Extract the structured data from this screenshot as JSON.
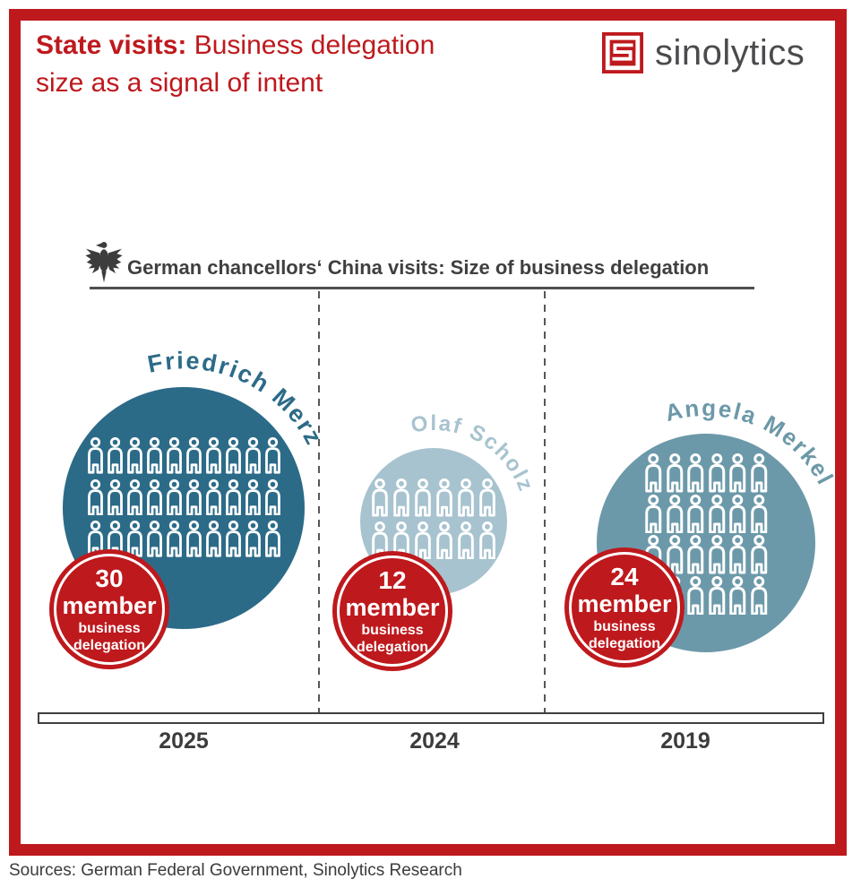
{
  "header": {
    "title_bold": "State visits:",
    "title_rest": " Business delegation",
    "title_line2": "size as a signal of intent",
    "brand": "sinolytics",
    "logo_icon": "sinolytics-logo-icon"
  },
  "chart": {
    "eagle_icon": "german-federal-eagle-icon",
    "title": "German chancellors‘ China visits: Size of business delegation",
    "groups": [
      {
        "name": "Friedrich Merz",
        "year": "2025",
        "members": 30,
        "grid_rows": 3,
        "grid_cols": 10,
        "color": "#2c6b88",
        "badge": {
          "number": "30",
          "unit": "member",
          "line1": "business",
          "line2": "delegation"
        }
      },
      {
        "name": "Olaf Scholz",
        "year": "2024",
        "members": 12,
        "grid_rows": 2,
        "grid_cols": 6,
        "color": "#a7c3cf",
        "badge": {
          "number": "12",
          "unit": "member",
          "line1": "business",
          "line2": "delegation"
        }
      },
      {
        "name": "Angela Merkel",
        "year": "2019",
        "members": 24,
        "grid_rows": 4,
        "grid_cols": 6,
        "color": "#6c99a9",
        "badge": {
          "number": "24",
          "unit": "member",
          "line1": "business",
          "line2": "delegation"
        }
      }
    ],
    "timeline": {
      "years": [
        "2025",
        "2024",
        "2019"
      ]
    }
  },
  "footer": {
    "sources": "Sources: German Federal Government, Sinolytics Research"
  },
  "colors": {
    "accent_red": "#be191d",
    "merz_blue": "#2c6b88",
    "scholz_blue": "#a7c3cf",
    "merkel_blue": "#6c99a9",
    "text_dark": "#3d3d3d",
    "brand_gray": "#4b4b4e"
  },
  "chart_data": {
    "type": "pictogram",
    "title": "German chancellors‘ China visits: Size of business delegation",
    "categories": [
      "2025",
      "2024",
      "2019"
    ],
    "series": [
      {
        "name": "Business delegation size (members)",
        "values": [
          30,
          12,
          24
        ]
      }
    ],
    "point_labels": [
      "Friedrich Merz",
      "Olaf Scholz",
      "Angela Merkel"
    ],
    "legend": "none",
    "grid": false,
    "notes": "One person glyph per delegation member; circle area scales with delegation size; x-axis is a timeline bar with years 2025, 2024, 2019"
  }
}
